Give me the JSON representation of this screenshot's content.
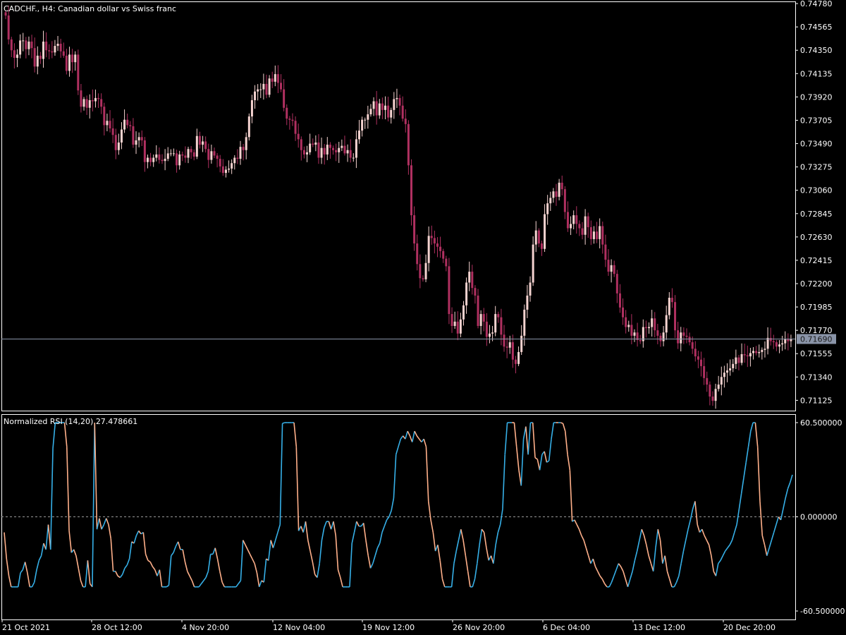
{
  "chart_data": [
    {
      "type": "candlestick",
      "title": "CADCHF., H4:  Canadian dollar vs Swiss franc",
      "ylim": [
        0.7103,
        0.748
      ],
      "y_ticks": [
        "0.74780",
        "0.74565",
        "0.74350",
        "0.74135",
        "0.73920",
        "0.73705",
        "0.73490",
        "0.73275",
        "0.73060",
        "0.72845",
        "0.72630",
        "0.72415",
        "0.72200",
        "0.71985",
        "0.71770",
        "0.71555",
        "0.71340",
        "0.71125"
      ],
      "current_price": "0.71690",
      "colors": {
        "up": "#f5d3d0",
        "down": "#b03060",
        "price_line": "#8a94a8",
        "price_tag_bg": "#8a94a8"
      },
      "close": [
        0.7467,
        0.7445,
        0.7435,
        0.7428,
        0.7431,
        0.7444,
        0.7444,
        0.7436,
        0.7443,
        0.7437,
        0.742,
        0.743,
        0.7427,
        0.7443,
        0.7435,
        0.7434,
        0.7433,
        0.7439,
        0.7441,
        0.7434,
        0.743,
        0.7416,
        0.7431,
        0.7424,
        0.7431,
        0.7398,
        0.7383,
        0.739,
        0.7382,
        0.7389,
        0.7388,
        0.7391,
        0.739,
        0.7383,
        0.7366,
        0.737,
        0.7363,
        0.7357,
        0.7343,
        0.735,
        0.7362,
        0.7371,
        0.7366,
        0.7365,
        0.7348,
        0.7352,
        0.7355,
        0.7352,
        0.7332,
        0.7336,
        0.7332,
        0.7336,
        0.7339,
        0.7334,
        0.7333,
        0.7335,
        0.734,
        0.734,
        0.734,
        0.7329,
        0.7339,
        0.7338,
        0.7336,
        0.7344,
        0.7341,
        0.7337,
        0.7356,
        0.7348,
        0.7351,
        0.7344,
        0.7334,
        0.7342,
        0.7338,
        0.7335,
        0.7328,
        0.7322,
        0.7325,
        0.7326,
        0.7331,
        0.7336,
        0.7335,
        0.7346,
        0.7343,
        0.7355,
        0.7374,
        0.7389,
        0.7397,
        0.7399,
        0.7399,
        0.7404,
        0.7394,
        0.7409,
        0.7406,
        0.7413,
        0.7405,
        0.7399,
        0.7382,
        0.7372,
        0.7371,
        0.737,
        0.7358,
        0.7353,
        0.7343,
        0.7339,
        0.7341,
        0.7349,
        0.7348,
        0.735,
        0.7336,
        0.7345,
        0.7339,
        0.7348,
        0.7345,
        0.7343,
        0.7341,
        0.7345,
        0.7347,
        0.734,
        0.7343,
        0.7336,
        0.7336,
        0.7353,
        0.7361,
        0.7371,
        0.7371,
        0.7376,
        0.7381,
        0.7388,
        0.7375,
        0.7386,
        0.738,
        0.7384,
        0.7373,
        0.738,
        0.739,
        0.7391,
        0.7384,
        0.7372,
        0.7367,
        0.7329,
        0.7283,
        0.7257,
        0.7238,
        0.7225,
        0.7224,
        0.7239,
        0.7264,
        0.7262,
        0.7257,
        0.7254,
        0.725,
        0.7243,
        0.7236,
        0.7192,
        0.7181,
        0.7185,
        0.7174,
        0.7187,
        0.72,
        0.7221,
        0.7231,
        0.7216,
        0.7209,
        0.7181,
        0.7192,
        0.7185,
        0.7171,
        0.7174,
        0.7175,
        0.7192,
        0.7189,
        0.7173,
        0.7162,
        0.7161,
        0.7166,
        0.715,
        0.7146,
        0.7157,
        0.7172,
        0.7196,
        0.7209,
        0.7221,
        0.7256,
        0.7269,
        0.7257,
        0.7252,
        0.7284,
        0.7294,
        0.7299,
        0.7305,
        0.73,
        0.7313,
        0.7307,
        0.7286,
        0.7271,
        0.7275,
        0.7283,
        0.7275,
        0.7271,
        0.7265,
        0.7282,
        0.7272,
        0.7261,
        0.7268,
        0.7261,
        0.7273,
        0.7256,
        0.7242,
        0.7231,
        0.7237,
        0.7229,
        0.7211,
        0.7198,
        0.7189,
        0.718,
        0.7182,
        0.7172,
        0.7175,
        0.7168,
        0.7167,
        0.718,
        0.7179,
        0.718,
        0.7188,
        0.7177,
        0.7172,
        0.7167,
        0.7175,
        0.7191,
        0.7207,
        0.7203,
        0.7177,
        0.7165,
        0.7175,
        0.7172,
        0.7171,
        0.7166,
        0.716,
        0.7153,
        0.715,
        0.7144,
        0.7133,
        0.7127,
        0.7116,
        0.7112,
        0.7123,
        0.7127,
        0.7134,
        0.7138,
        0.714,
        0.7142,
        0.7146,
        0.7152,
        0.7147,
        0.7155,
        0.7154,
        0.7153,
        0.7156,
        0.7158,
        0.7156,
        0.7157,
        0.7159,
        0.716,
        0.717,
        0.7167,
        0.7166,
        0.7162,
        0.7164,
        0.7165,
        0.7169,
        0.7167,
        0.7169
      ]
    },
    {
      "type": "line",
      "title": "Normalized RSI (14,20) 27.478661",
      "ylim": [
        -60.5,
        60.5
      ],
      "y_ticks": [
        "60.500000",
        "0.000000",
        "-60.500000"
      ],
      "zero_line": true,
      "colors": {
        "rising": "#36b0e8",
        "falling": "#ffb08a",
        "zero_line": "#999999"
      },
      "values": [
        -10,
        -27,
        -38,
        -45,
        -45,
        -45,
        -45,
        -36,
        -34,
        -29,
        -36,
        -45,
        -45,
        -42,
        -34,
        -28,
        -25,
        -17,
        -21,
        -5,
        -21,
        44,
        65,
        65,
        65,
        65,
        65,
        45,
        -9,
        -23,
        -21,
        -25,
        -33,
        -41,
        -45,
        -45,
        -28,
        -43,
        -45,
        65,
        -8,
        -1,
        -8,
        -5,
        -1,
        -5,
        -14,
        -35,
        -35,
        -38,
        -39,
        -37,
        -33,
        -31,
        -27,
        -16,
        -17,
        -12,
        -9,
        -11,
        -10,
        -24,
        -28,
        -29,
        -32,
        -34,
        -38,
        -34,
        -45,
        -45,
        -45,
        -44,
        -25,
        -23,
        -19,
        -16,
        -21,
        -21,
        -29,
        -35,
        -38,
        -41,
        -45,
        -45,
        -45,
        -43,
        -41,
        -39,
        -35,
        -24,
        -24,
        -20,
        -27,
        -35,
        -42,
        -45,
        -45,
        -45,
        -45,
        -45,
        -45,
        -43,
        -41,
        -15,
        -18,
        -21,
        -24,
        -27,
        -30,
        -36,
        -45,
        -41,
        -42,
        -27,
        -28,
        -15,
        -20,
        -15,
        -10,
        -5,
        60,
        65,
        65,
        65,
        65,
        65,
        45,
        -9,
        -6,
        -10,
        -3,
        -15,
        -22,
        -29,
        -37,
        -39,
        -30,
        -15,
        -7,
        -3,
        -3,
        -8,
        -3,
        -12,
        -34,
        -39,
        -45,
        -45,
        -45,
        -45,
        -17,
        -10,
        -3,
        -6,
        -6,
        -4,
        -15,
        -25,
        -33,
        -30,
        -25,
        -20,
        -17,
        -10,
        -6,
        -2,
        0,
        4,
        12,
        40,
        45,
        50,
        52,
        50,
        55,
        52,
        48,
        55,
        52,
        50,
        48,
        50,
        45,
        10,
        -2,
        -10,
        -22,
        -18,
        -28,
        -40,
        -45,
        -45,
        -45,
        -45,
        -30,
        -22,
        -15,
        -8,
        -15,
        -25,
        -35,
        -45,
        -45,
        -40,
        -30,
        -18,
        -8,
        -10,
        -20,
        -28,
        -25,
        -30,
        -18,
        -10,
        -5,
        5,
        40,
        65,
        65,
        65,
        62,
        45,
        30,
        20,
        50,
        58,
        40,
        62,
        62,
        38,
        37,
        30,
        40,
        42,
        35,
        36,
        50,
        64,
        64,
        62,
        62,
        60,
        55,
        40,
        30,
        -3,
        -2,
        -5,
        -8,
        -12,
        -15,
        -20,
        -25,
        -30,
        -27,
        -32,
        -35,
        -38,
        -40,
        -43,
        -45,
        -45,
        -42,
        -38,
        -34,
        -30,
        -32,
        -35,
        -40,
        -45,
        -40,
        -35,
        -28,
        -22,
        -15,
        -8,
        -12,
        -18,
        -25,
        -30,
        -35,
        -20,
        -8,
        -15,
        -30,
        -25,
        -35,
        -40,
        -45,
        -45,
        -42,
        -38,
        -30,
        -22,
        -15,
        -8,
        -2,
        5,
        10,
        -5,
        -10,
        -8,
        -12,
        -15,
        -18,
        -25,
        -35,
        -38,
        -30,
        -28,
        -25,
        -22,
        -20,
        -18,
        -15,
        -10,
        -5,
        5,
        15,
        25,
        35,
        45,
        55,
        65,
        65,
        45,
        10,
        -12,
        -18,
        -25,
        -20,
        -15,
        -10,
        -5,
        0,
        -2,
        5,
        12,
        18,
        22,
        27
      ]
    }
  ],
  "x_axis": {
    "labels": [
      "21 Oct 2021",
      "28 Oct 12:00",
      "4 Nov 20:00",
      "12 Nov 04:00",
      "19 Nov 12:00",
      "26 Nov 20:00",
      "6 Dec 04:00",
      "13 Dec 12:00",
      "20 Dec 20:00"
    ]
  }
}
